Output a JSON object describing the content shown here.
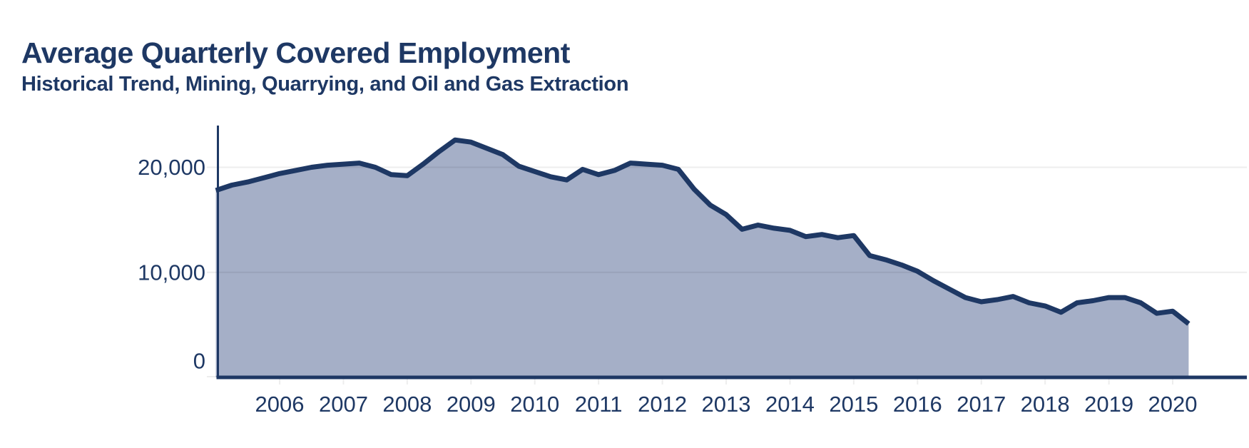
{
  "header": {
    "title": "Average Quarterly Covered Employment",
    "subtitle": "Historical Trend, Mining, Quarrying, and Oil and Gas Extraction"
  },
  "colors": {
    "navy": "#1e3864",
    "area_fill": "#a5afc7",
    "gridline": "rgba(0,0,0,0.07)",
    "background": "#ffffff"
  },
  "chart_data": {
    "type": "area",
    "title": "Average Quarterly Covered Employment",
    "subtitle": "Historical Trend, Mining, Quarrying, and Oil and Gas Extraction",
    "xlabel": "",
    "ylabel": "",
    "legend": "none",
    "grid": "horizontal",
    "ylim": [
      0,
      24000
    ],
    "y_ticks": [
      0,
      10000,
      20000
    ],
    "y_tick_labels": [
      "0",
      "10,000",
      "20,000"
    ],
    "x_tick_labels": [
      "2006",
      "2007",
      "2008",
      "2009",
      "2010",
      "2011",
      "2012",
      "2013",
      "2014",
      "2015",
      "2016",
      "2017",
      "2018",
      "2019",
      "2020"
    ],
    "x_start_year": 2005,
    "x": [
      "2005 Q1",
      "2005 Q2",
      "2005 Q3",
      "2005 Q4",
      "2006 Q1",
      "2006 Q2",
      "2006 Q3",
      "2006 Q4",
      "2007 Q1",
      "2007 Q2",
      "2007 Q3",
      "2007 Q4",
      "2008 Q1",
      "2008 Q2",
      "2008 Q3",
      "2008 Q4",
      "2009 Q1",
      "2009 Q2",
      "2009 Q3",
      "2009 Q4",
      "2010 Q1",
      "2010 Q2",
      "2010 Q3",
      "2010 Q4",
      "2011 Q1",
      "2011 Q2",
      "2011 Q3",
      "2011 Q4",
      "2012 Q1",
      "2012 Q2",
      "2012 Q3",
      "2012 Q4",
      "2013 Q1",
      "2013 Q2",
      "2013 Q3",
      "2013 Q4",
      "2014 Q1",
      "2014 Q2",
      "2014 Q3",
      "2014 Q4",
      "2015 Q1",
      "2015 Q2",
      "2015 Q3",
      "2015 Q4",
      "2016 Q1",
      "2016 Q2",
      "2016 Q3",
      "2016 Q4",
      "2017 Q1",
      "2017 Q2",
      "2017 Q3",
      "2017 Q4",
      "2018 Q1",
      "2018 Q2",
      "2018 Q3",
      "2018 Q4",
      "2019 Q1",
      "2019 Q2",
      "2019 Q3",
      "2019 Q4",
      "2020 Q1",
      "2020 Q2"
    ],
    "series": [
      {
        "name": "Average Quarterly Covered Employment, Mining, Quarrying, and Oil and Gas Extraction",
        "values": [
          17800,
          18300,
          18600,
          19000,
          19400,
          19700,
          20000,
          20200,
          20300,
          20400,
          20000,
          19300,
          19200,
          20300,
          21500,
          22600,
          22400,
          21800,
          21200,
          20100,
          19600,
          19100,
          18800,
          19800,
          19300,
          19700,
          20400,
          20300,
          20200,
          19800,
          17900,
          16400,
          15500,
          14100,
          14500,
          14200,
          14000,
          13400,
          13600,
          13300,
          13500,
          11600,
          11200,
          10700,
          10100,
          9200,
          8400,
          7600,
          7200,
          7400,
          7700,
          7100,
          6800,
          6200,
          7100,
          7300,
          7600,
          7600,
          7100,
          6100,
          6300,
          5100
        ]
      }
    ]
  }
}
